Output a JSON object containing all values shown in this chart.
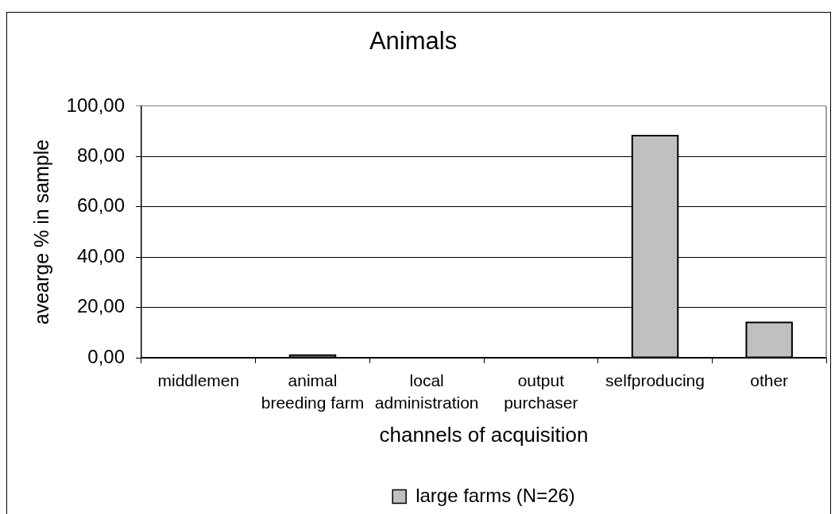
{
  "chart_data": {
    "type": "bar",
    "title": "Animals",
    "xlabel": "channels of acquisition",
    "ylabel": "avearge % in sample",
    "categories": [
      "middlemen",
      "animal breeding farm",
      "local administration",
      "output purchaser",
      "selfproducing",
      "other"
    ],
    "series": [
      {
        "name": "large farms (N=26)",
        "color": "#c0c0c0",
        "values": [
          0,
          1.0,
          0,
          0,
          88.3,
          14.0
        ]
      }
    ],
    "ylim": [
      0,
      100
    ],
    "yticks": [
      {
        "value": 0,
        "label": "0,00"
      },
      {
        "value": 20,
        "label": "20,00"
      },
      {
        "value": 40,
        "label": "40,00"
      },
      {
        "value": 60,
        "label": "60,00"
      },
      {
        "value": 80,
        "label": "80,00"
      },
      {
        "value": 100,
        "label": "100,00"
      }
    ],
    "grid": "y",
    "legend": "bottom"
  }
}
